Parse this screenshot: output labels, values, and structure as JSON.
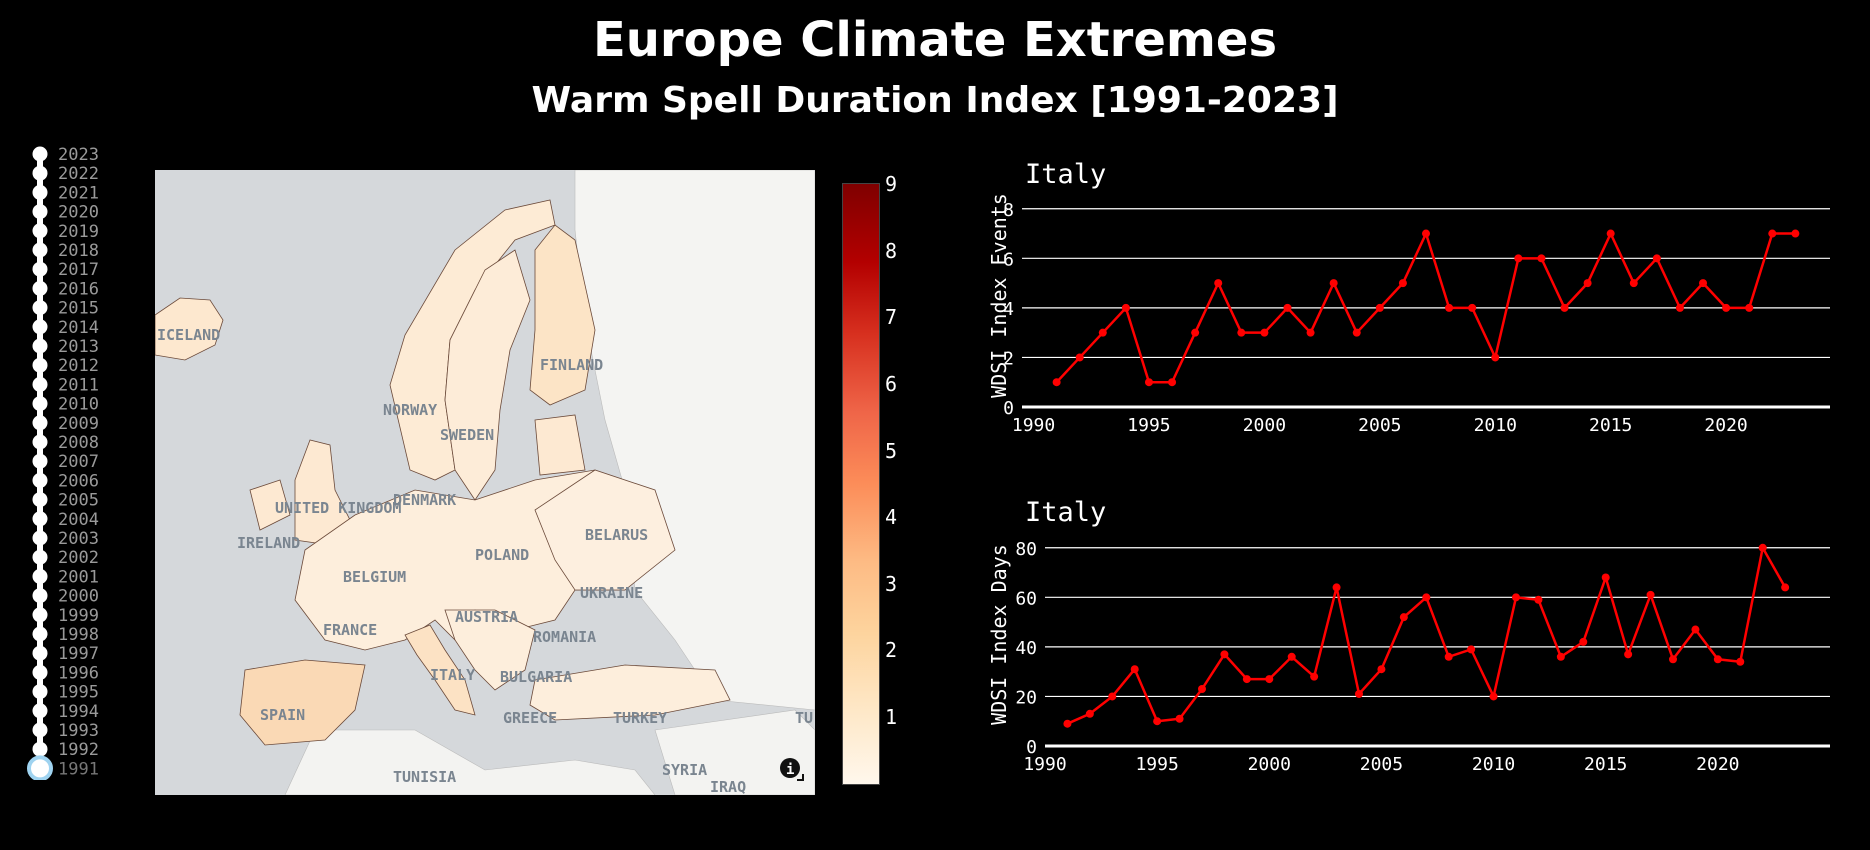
{
  "header": {
    "title": "Europe Climate Extremes",
    "subtitle": "Warm Spell Duration Index [1991-2023]"
  },
  "year_slider": {
    "years": [
      "2023",
      "2022",
      "2021",
      "2020",
      "2019",
      "2018",
      "2017",
      "2016",
      "2015",
      "2014",
      "2013",
      "2012",
      "2011",
      "2010",
      "2009",
      "2008",
      "2007",
      "2006",
      "2005",
      "2004",
      "2003",
      "2002",
      "2001",
      "2000",
      "1999",
      "1998",
      "1997",
      "1996",
      "1995",
      "1994",
      "1993",
      "1992",
      "1991"
    ],
    "selected": "1991"
  },
  "map": {
    "labels": [
      "ICELAND",
      "FINLAND",
      "NORWAY",
      "SWEDEN",
      "DENMARK",
      "UNITED KINGDOM",
      "IRELAND",
      "BELARUS",
      "POLAND",
      "BELGIUM",
      "UKRAINE",
      "FRANCE",
      "AUSTRIA",
      "ROMANIA",
      "ITALY",
      "BULGARIA",
      "SPAIN",
      "GREECE",
      "TURKEY",
      "TUNISIA",
      "SYRIA",
      "IRAQ",
      "TU"
    ],
    "info_icon": "info-icon"
  },
  "colorbar": {
    "ticks": [
      "9",
      "8",
      "7",
      "6",
      "5",
      "4",
      "3",
      "2",
      "1"
    ],
    "colors": [
      "#fff7ec",
      "#fee8c8",
      "#fdd49e",
      "#fdbb84",
      "#fc8d59",
      "#ef6548",
      "#d7301f",
      "#b30000",
      "#7f0000"
    ]
  },
  "chart_data": [
    {
      "type": "line",
      "title": "Italy",
      "ylabel": "WDSI Index Events",
      "xlabel": "",
      "x": [
        1991,
        1992,
        1993,
        1994,
        1995,
        1996,
        1997,
        1998,
        1999,
        2000,
        2001,
        2002,
        2003,
        2004,
        2005,
        2006,
        2007,
        2008,
        2009,
        2010,
        2011,
        2012,
        2013,
        2014,
        2015,
        2016,
        2017,
        2018,
        2019,
        2020,
        2021,
        2022,
        2023
      ],
      "series": [
        {
          "values": [
            1,
            2,
            3,
            4,
            1,
            1,
            3,
            5,
            3,
            3,
            4,
            3,
            5,
            3,
            4,
            5,
            7,
            4,
            4,
            2,
            6,
            6,
            4,
            5,
            7,
            5,
            6,
            4,
            5,
            4,
            4,
            7,
            7
          ]
        }
      ],
      "xlim": [
        1989.5,
        2024.5
      ],
      "ylim": [
        0,
        9
      ],
      "xticks": [
        1990,
        1995,
        2000,
        2005,
        2010,
        2015,
        2020
      ],
      "yticks": [
        0,
        2,
        4,
        6,
        8
      ],
      "color": "#ff0000",
      "grid": true
    },
    {
      "type": "line",
      "title": "Italy",
      "ylabel": "WDSI Index Days",
      "xlabel": "",
      "x": [
        1991,
        1992,
        1993,
        1994,
        1995,
        1996,
        1997,
        1998,
        1999,
        2000,
        2001,
        2002,
        2003,
        2004,
        2005,
        2006,
        2007,
        2008,
        2009,
        2010,
        2011,
        2012,
        2013,
        2014,
        2015,
        2016,
        2017,
        2018,
        2019,
        2020,
        2021,
        2022,
        2023
      ],
      "series": [
        {
          "values": [
            9,
            13,
            20,
            31,
            10,
            11,
            23,
            37,
            27,
            27,
            36,
            28,
            64,
            21,
            31,
            52,
            60,
            36,
            39,
            20,
            60,
            59,
            36,
            42,
            68,
            37,
            61,
            35,
            47,
            35,
            34,
            80,
            64
          ]
        }
      ],
      "xlim": [
        1990,
        2025
      ],
      "ylim": [
        0,
        90
      ],
      "xticks": [
        1990,
        1995,
        2000,
        2005,
        2010,
        2015,
        2020
      ],
      "yticks": [
        0,
        20,
        40,
        60,
        80
      ],
      "color": "#ff0000",
      "grid": true
    }
  ]
}
